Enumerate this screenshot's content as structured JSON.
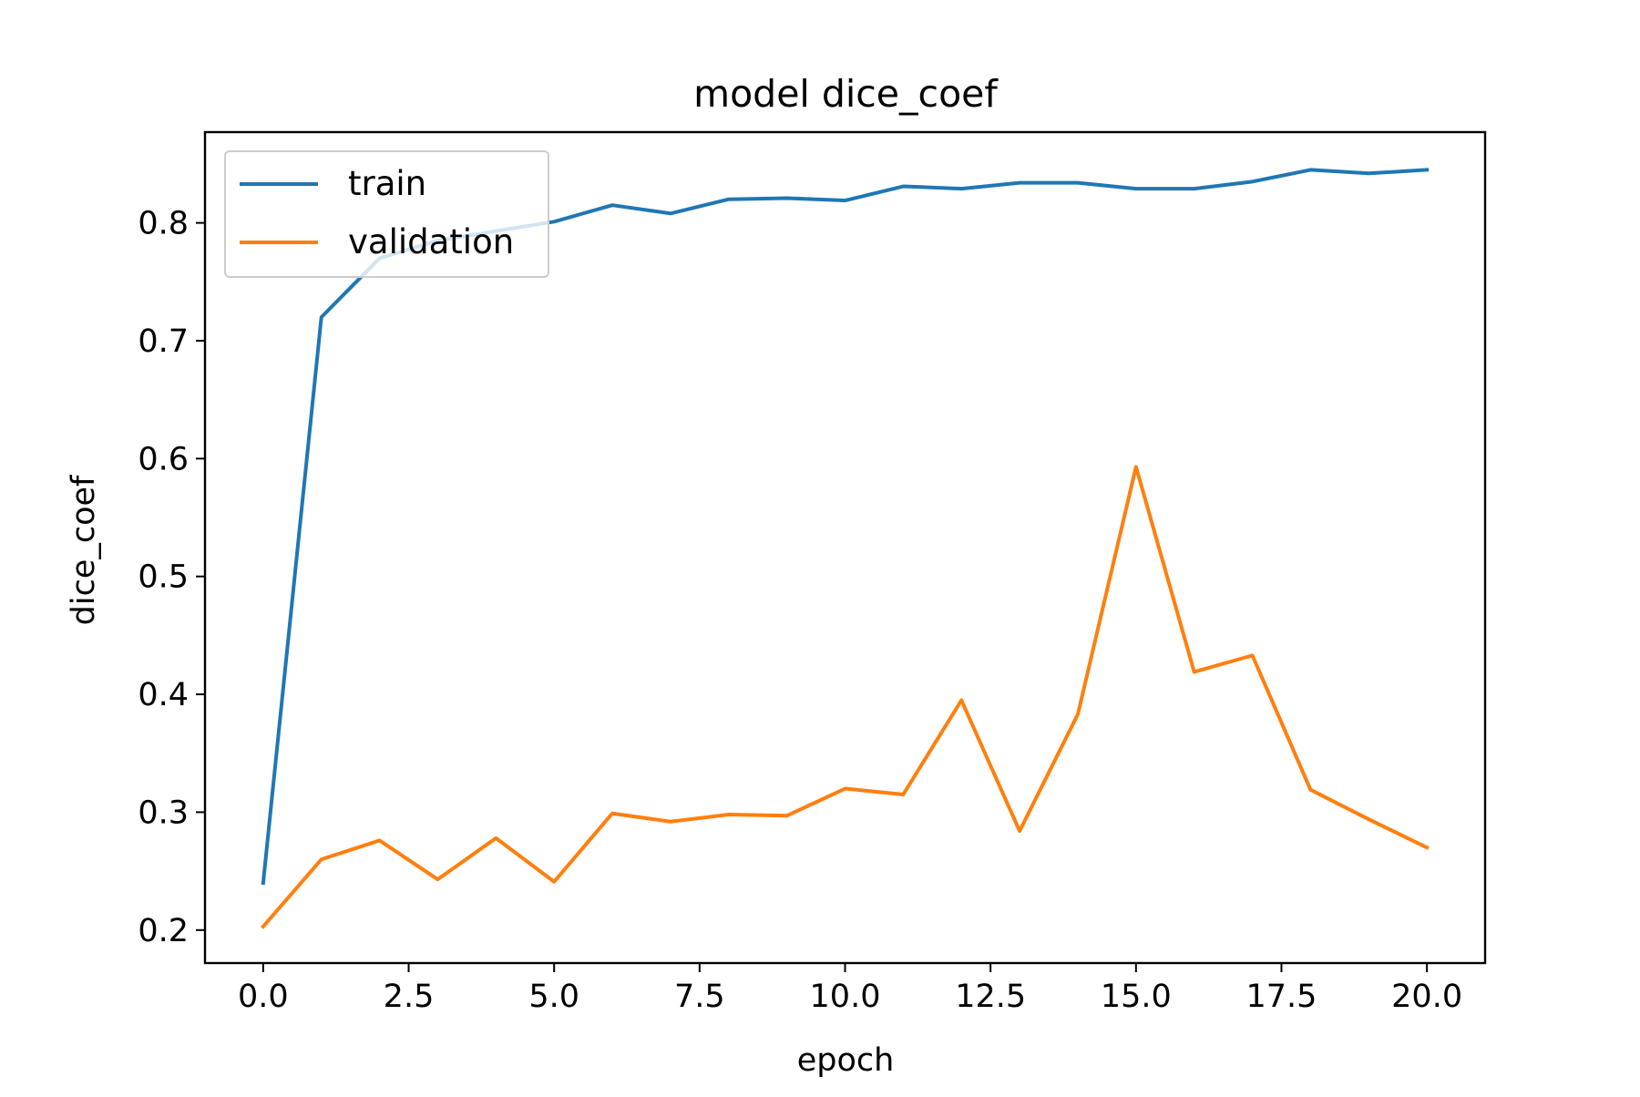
{
  "chart_data": {
    "type": "line",
    "title": "model dice_coef",
    "xlabel": "epoch",
    "ylabel": "dice_coef",
    "xlim": [
      -1.0,
      21.0
    ],
    "ylim": [
      0.172,
      0.877
    ],
    "xticks": [
      0.0,
      2.5,
      5.0,
      7.5,
      10.0,
      12.5,
      15.0,
      17.5,
      20.0
    ],
    "xtick_labels": [
      "0.0",
      "2.5",
      "5.0",
      "7.5",
      "10.0",
      "12.5",
      "15.0",
      "17.5",
      "20.0"
    ],
    "yticks": [
      0.2,
      0.3,
      0.4,
      0.5,
      0.6,
      0.7,
      0.8
    ],
    "ytick_labels": [
      "0.2",
      "0.3",
      "0.4",
      "0.5",
      "0.6",
      "0.7",
      "0.8"
    ],
    "grid": false,
    "legend_position": "top-left",
    "x": [
      0,
      1,
      2,
      3,
      4,
      5,
      6,
      7,
      8,
      9,
      10,
      11,
      12,
      13,
      14,
      15,
      16,
      17,
      18,
      19,
      20
    ],
    "series": [
      {
        "name": "train",
        "color": "#1f77b4",
        "values": [
          0.24,
          0.72,
          0.77,
          0.785,
          0.793,
          0.801,
          0.815,
          0.808,
          0.82,
          0.821,
          0.819,
          0.831,
          0.829,
          0.834,
          0.834,
          0.829,
          0.829,
          0.835,
          0.845,
          0.842,
          0.845
        ]
      },
      {
        "name": "validation",
        "color": "#ff7f0e",
        "values": [
          0.203,
          0.26,
          0.276,
          0.243,
          0.278,
          0.241,
          0.299,
          0.292,
          0.298,
          0.297,
          0.32,
          0.315,
          0.395,
          0.284,
          0.383,
          0.593,
          0.419,
          0.433,
          0.319,
          0.294,
          0.27
        ]
      }
    ]
  }
}
